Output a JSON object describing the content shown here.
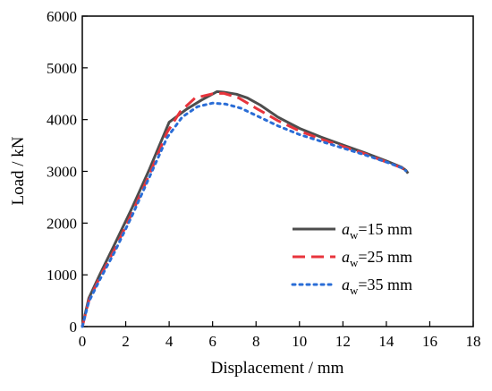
{
  "chart_data": {
    "type": "line",
    "xlabel": "Displacement / mm",
    "ylabel": "Load / kN",
    "xlim": [
      0,
      18
    ],
    "ylim": [
      0,
      6000
    ],
    "xticks": [
      0,
      2,
      4,
      6,
      8,
      10,
      12,
      14,
      16,
      18
    ],
    "yticks": [
      0,
      1000,
      2000,
      3000,
      4000,
      5000,
      6000
    ],
    "grid": false,
    "legend_position": "lower-right",
    "series": [
      {
        "name": "15 mm",
        "name_prefix": "a",
        "name_subscript": "w",
        "name_sep": "=",
        "color": "#4d4d4d",
        "style": "solid",
        "x": [
          0,
          0.3,
          0.8,
          1.5,
          2.3,
          3.1,
          4.0,
          4.8,
          5.5,
          6.2,
          6.5,
          7.1,
          7.6,
          8.2,
          9.0,
          10.0,
          11.0,
          12.0,
          13.0,
          14.0,
          14.7,
          14.9,
          15.0
        ],
        "y": [
          0,
          550,
          1000,
          1600,
          2300,
          3050,
          3950,
          4200,
          4380,
          4540,
          4530,
          4490,
          4420,
          4280,
          4050,
          3830,
          3660,
          3510,
          3360,
          3200,
          3080,
          3020,
          2960
        ]
      },
      {
        "name": "25 mm",
        "name_prefix": "a",
        "name_subscript": "w",
        "name_sep": "=",
        "color": "#e8343c",
        "style": "dashed",
        "x": [
          0,
          0.3,
          0.8,
          1.5,
          2.3,
          3.1,
          3.9,
          4.5,
          5.2,
          6.0,
          6.5,
          7.2,
          8.0,
          9.0,
          10.0,
          11.0,
          12.0,
          13.0,
          14.0,
          14.7,
          14.9
        ],
        "y": [
          0,
          500,
          950,
          1500,
          2200,
          2950,
          3750,
          4150,
          4420,
          4500,
          4510,
          4420,
          4220,
          3980,
          3780,
          3620,
          3480,
          3340,
          3180,
          3070,
          3010
        ]
      },
      {
        "name": "35 mm",
        "name_prefix": "a",
        "name_subscript": "w",
        "name_sep": "=",
        "color": "#2a6dd6",
        "style": "dotted",
        "x": [
          0,
          0.3,
          0.8,
          1.5,
          2.3,
          3.1,
          3.9,
          4.6,
          5.3,
          6.0,
          6.6,
          7.3,
          8.0,
          9.0,
          10.0,
          11.0,
          12.0,
          13.0,
          14.0,
          14.7,
          14.9
        ],
        "y": [
          0,
          480,
          900,
          1450,
          2150,
          2900,
          3650,
          4050,
          4250,
          4320,
          4300,
          4220,
          4080,
          3880,
          3710,
          3580,
          3450,
          3320,
          3180,
          3070,
          3010
        ]
      }
    ]
  }
}
